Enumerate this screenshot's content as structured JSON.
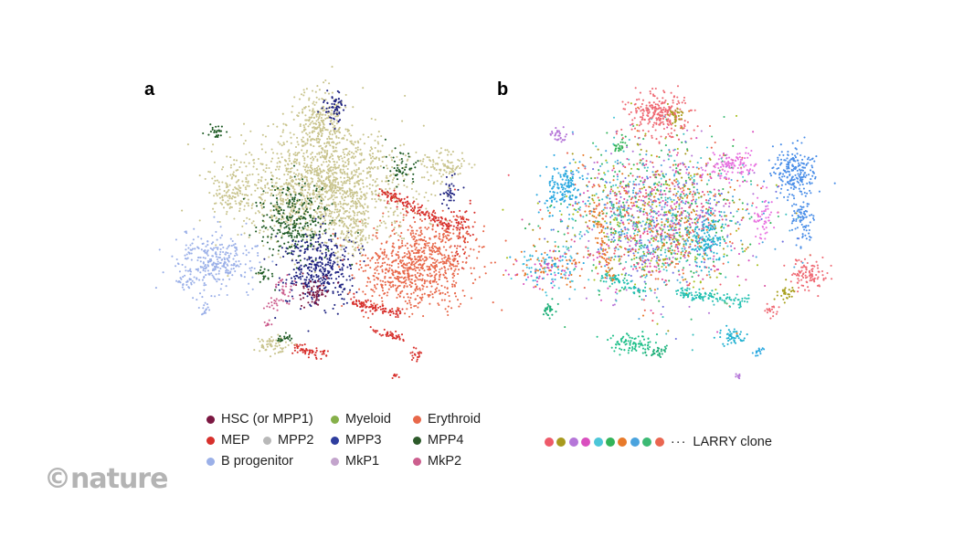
{
  "panels": {
    "a": "a",
    "b": "b"
  },
  "legend_a": [
    {
      "label": "HSC (or MPP1)",
      "color": "#7b1741"
    },
    {
      "label": "Myeloid",
      "color": "#86b04a"
    },
    {
      "label": "Erythroid",
      "color": "#e8684a"
    },
    {
      "label": "MEP",
      "color": "#d7302c"
    },
    {
      "label": "MPP2",
      "color": "#b8b8b8"
    },
    {
      "label": "MPP4",
      "color": "#2d5a2a"
    },
    {
      "label": "B progenitor",
      "color": "#9bb0e8"
    },
    {
      "label": "MPP3",
      "color": "#2e3d9e"
    },
    {
      "label": "MkP1",
      "color": "#c3a4cc"
    },
    {
      "label": "MkP2",
      "color": "#cc5f8e"
    }
  ],
  "clone_legend": {
    "label": "LARRY clone",
    "ellipsis": "···",
    "colors": [
      "#ee5a6a",
      "#a89a1e",
      "#b576d8",
      "#d94fbf",
      "#4cc6d8",
      "#33b45a",
      "#e87a2a",
      "#4aa3de",
      "#3cba74",
      "#ea6650"
    ]
  },
  "brand": "©nature",
  "scatter_palette_a": {
    "pale": "#c9c48e",
    "navy": "#1e2280",
    "green": "#1e5a24",
    "orange": "#e8684a",
    "red": "#d7302c",
    "blue": "#9bb0e8",
    "plum": "#7b1741",
    "pink": "#cc5f8e"
  }
}
